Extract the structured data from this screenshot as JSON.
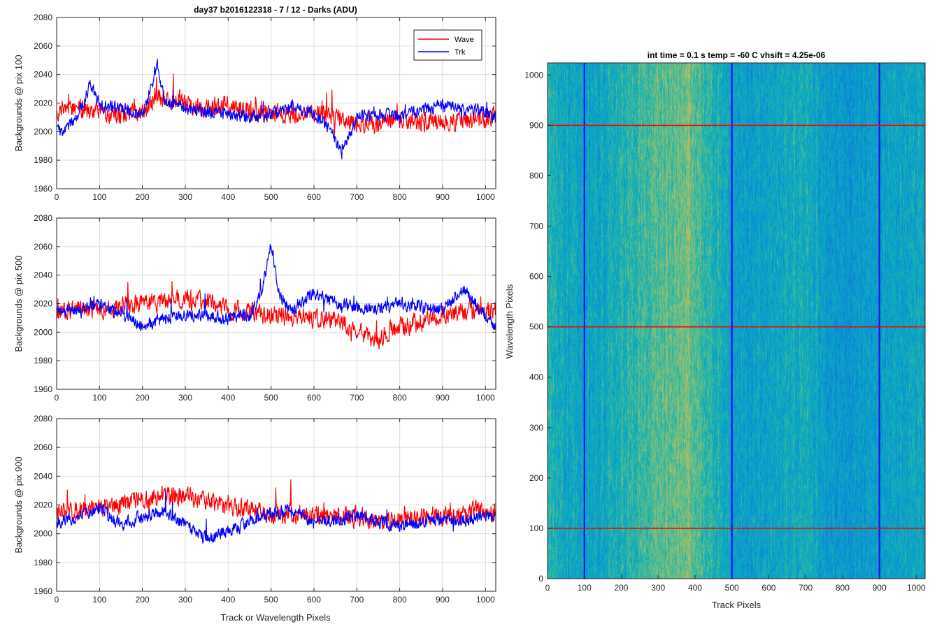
{
  "figure": {
    "suptitle": "day37 b2016122318 - 7 / 12 - Darks (ADU)",
    "xlabel_left": "Track or Wavelength Pixels"
  },
  "chart_data": [
    {
      "type": "line",
      "ylabel": "Backgrounds @ pix 100",
      "xlim": [
        0,
        1024
      ],
      "ylim": [
        1960,
        2080
      ],
      "xticks": [
        0,
        100,
        200,
        300,
        400,
        500,
        600,
        700,
        800,
        900,
        1000
      ],
      "yticks": [
        1960,
        1980,
        2000,
        2020,
        2040,
        2060,
        2080
      ],
      "grid": true,
      "legend": "top-right",
      "series": [
        {
          "name": "Wave",
          "color": "#ff0000",
          "baseline": 2013,
          "noise": 9,
          "features": [
            [
              230,
              2030,
              40
            ],
            [
              270,
              2022,
              60
            ],
            [
              400,
              2018,
              60
            ],
            [
              800,
              2008,
              200
            ]
          ],
          "x": [
            0,
            50,
            100,
            150,
            200,
            230,
            270,
            300,
            350,
            400,
            450,
            500,
            550,
            600,
            650,
            700,
            750,
            800,
            850,
            900,
            950,
            1000,
            1024
          ],
          "values": [
            2015,
            2016,
            2014,
            2012,
            2013,
            2025,
            2022,
            2020,
            2016,
            2018,
            2014,
            2013,
            2012,
            2013,
            2010,
            2006,
            2005,
            2008,
            2007,
            2008,
            2007,
            2009,
            2012
          ]
        },
        {
          "name": "Trk",
          "color": "#0000ff",
          "baseline": 2014,
          "noise": 6,
          "features": [
            [
              80,
              2032,
              12
            ],
            [
              235,
              2046,
              22
            ],
            [
              665,
              1985,
              22
            ],
            [
              1000,
              2012,
              40
            ]
          ],
          "x": [
            0,
            10,
            50,
            80,
            100,
            150,
            200,
            220,
            235,
            250,
            300,
            350,
            400,
            450,
            500,
            550,
            600,
            640,
            665,
            700,
            750,
            800,
            850,
            900,
            950,
            1000,
            1024
          ],
          "values": [
            2008,
            1998,
            2012,
            2034,
            2018,
            2016,
            2012,
            2030,
            2048,
            2022,
            2016,
            2014,
            2012,
            2010,
            2012,
            2018,
            2012,
            2002,
            1985,
            2010,
            2012,
            2010,
            2015,
            2018,
            2016,
            2014,
            2008
          ]
        }
      ]
    },
    {
      "type": "line",
      "ylabel": "Backgrounds @ pix 500",
      "xlim": [
        0,
        1024
      ],
      "ylim": [
        1960,
        2080
      ],
      "xticks": [
        0,
        100,
        200,
        300,
        400,
        500,
        600,
        700,
        800,
        900,
        1000
      ],
      "yticks": [
        1960,
        1980,
        2000,
        2020,
        2040,
        2060,
        2080
      ],
      "grid": true,
      "series": [
        {
          "name": "Wave",
          "color": "#ff0000",
          "baseline": 2014,
          "noise": 9,
          "features": [
            [
              210,
              2024,
              80
            ],
            [
              330,
              2026,
              60
            ],
            [
              740,
              1996,
              40
            ],
            [
              860,
              2004,
              60
            ]
          ],
          "x": [
            0,
            50,
            100,
            150,
            200,
            250,
            300,
            350,
            400,
            450,
            500,
            550,
            600,
            650,
            700,
            750,
            800,
            850,
            900,
            950,
            1000,
            1024
          ],
          "values": [
            2014,
            2016,
            2016,
            2018,
            2020,
            2022,
            2022,
            2022,
            2016,
            2014,
            2012,
            2010,
            2010,
            2008,
            2002,
            1995,
            2005,
            2006,
            2012,
            2014,
            2014,
            2016
          ]
        },
        {
          "name": "Trk",
          "color": "#0000ff",
          "baseline": 2014,
          "noise": 6,
          "features": [
            [
              500,
              2058,
              14
            ],
            [
              590,
              2024,
              60
            ],
            [
              950,
              2028,
              40
            ],
            [
              210,
              2004,
              40
            ]
          ],
          "x": [
            0,
            50,
            100,
            150,
            200,
            250,
            300,
            350,
            400,
            450,
            480,
            500,
            520,
            550,
            600,
            650,
            700,
            750,
            800,
            850,
            900,
            950,
            1000,
            1024
          ],
          "values": [
            2014,
            2016,
            2018,
            2014,
            2004,
            2010,
            2012,
            2012,
            2010,
            2012,
            2030,
            2062,
            2024,
            2016,
            2028,
            2020,
            2018,
            2016,
            2020,
            2018,
            2016,
            2030,
            2012,
            2004
          ]
        }
      ]
    },
    {
      "type": "line",
      "ylabel": "Backgrounds @ pix 900",
      "xlabel": "Track or Wavelength Pixels",
      "xlim": [
        0,
        1024
      ],
      "ylim": [
        1960,
        2080
      ],
      "xticks": [
        0,
        100,
        200,
        300,
        400,
        500,
        600,
        700,
        800,
        900,
        1000
      ],
      "yticks": [
        1960,
        1980,
        2000,
        2020,
        2040,
        2060,
        2080
      ],
      "grid": true,
      "series": [
        {
          "name": "Wave",
          "color": "#ff0000",
          "baseline": 2016,
          "noise": 9,
          "features": [
            [
              280,
              2026,
              120
            ],
            [
              760,
              2004,
              40
            ]
          ],
          "x": [
            0,
            50,
            100,
            150,
            200,
            250,
            300,
            350,
            400,
            450,
            500,
            550,
            600,
            650,
            700,
            750,
            800,
            850,
            900,
            950,
            1000,
            1024
          ],
          "values": [
            2014,
            2016,
            2018,
            2020,
            2024,
            2026,
            2026,
            2022,
            2020,
            2016,
            2014,
            2014,
            2012,
            2012,
            2012,
            2008,
            2010,
            2012,
            2012,
            2014,
            2016,
            2016
          ]
        },
        {
          "name": "Trk",
          "color": "#0000ff",
          "baseline": 2012,
          "noise": 6,
          "features": [
            [
              80,
              2020,
              40
            ],
            [
              350,
              1996,
              40
            ],
            [
              530,
              2020,
              40
            ]
          ],
          "x": [
            0,
            50,
            100,
            150,
            200,
            250,
            300,
            350,
            400,
            450,
            500,
            550,
            600,
            650,
            700,
            750,
            800,
            850,
            900,
            950,
            1000,
            1024
          ],
          "values": [
            2008,
            2012,
            2018,
            2006,
            2012,
            2016,
            2006,
            1996,
            2002,
            2008,
            2014,
            2016,
            2008,
            2010,
            2012,
            2008,
            2006,
            2008,
            2010,
            2010,
            2012,
            2012
          ]
        }
      ]
    },
    {
      "type": "heatmap",
      "title": "int time = 0.1 s   temp = -60 C   vhsift = 4.25e-06",
      "xlabel": "Track Pixels",
      "ylabel": "Wavelength Pixels",
      "xlim": [
        0,
        1024
      ],
      "ylim": [
        0,
        1024
      ],
      "xticks": [
        0,
        100,
        200,
        300,
        400,
        500,
        600,
        700,
        800,
        900,
        1000
      ],
      "yticks": [
        0,
        100,
        200,
        300,
        400,
        500,
        600,
        700,
        800,
        900,
        1000
      ],
      "colormap": "parula",
      "column_profile": {
        "x": [
          0,
          50,
          100,
          150,
          200,
          250,
          300,
          350,
          380,
          400,
          450,
          500,
          550,
          600,
          650,
          700,
          750,
          800,
          850,
          900,
          950,
          1000,
          1024
        ],
        "values": [
          0.58,
          0.5,
          0.46,
          0.5,
          0.55,
          0.6,
          0.64,
          0.68,
          0.7,
          0.64,
          0.56,
          0.46,
          0.44,
          0.47,
          0.5,
          0.52,
          0.45,
          0.4,
          0.43,
          0.44,
          0.46,
          0.48,
          0.48
        ]
      },
      "vertical_lines": {
        "x": [
          100,
          500,
          900
        ],
        "color": "#0000ff"
      },
      "horizontal_lines": {
        "y": [
          100,
          500,
          900
        ],
        "color": "#ff0000"
      }
    }
  ]
}
